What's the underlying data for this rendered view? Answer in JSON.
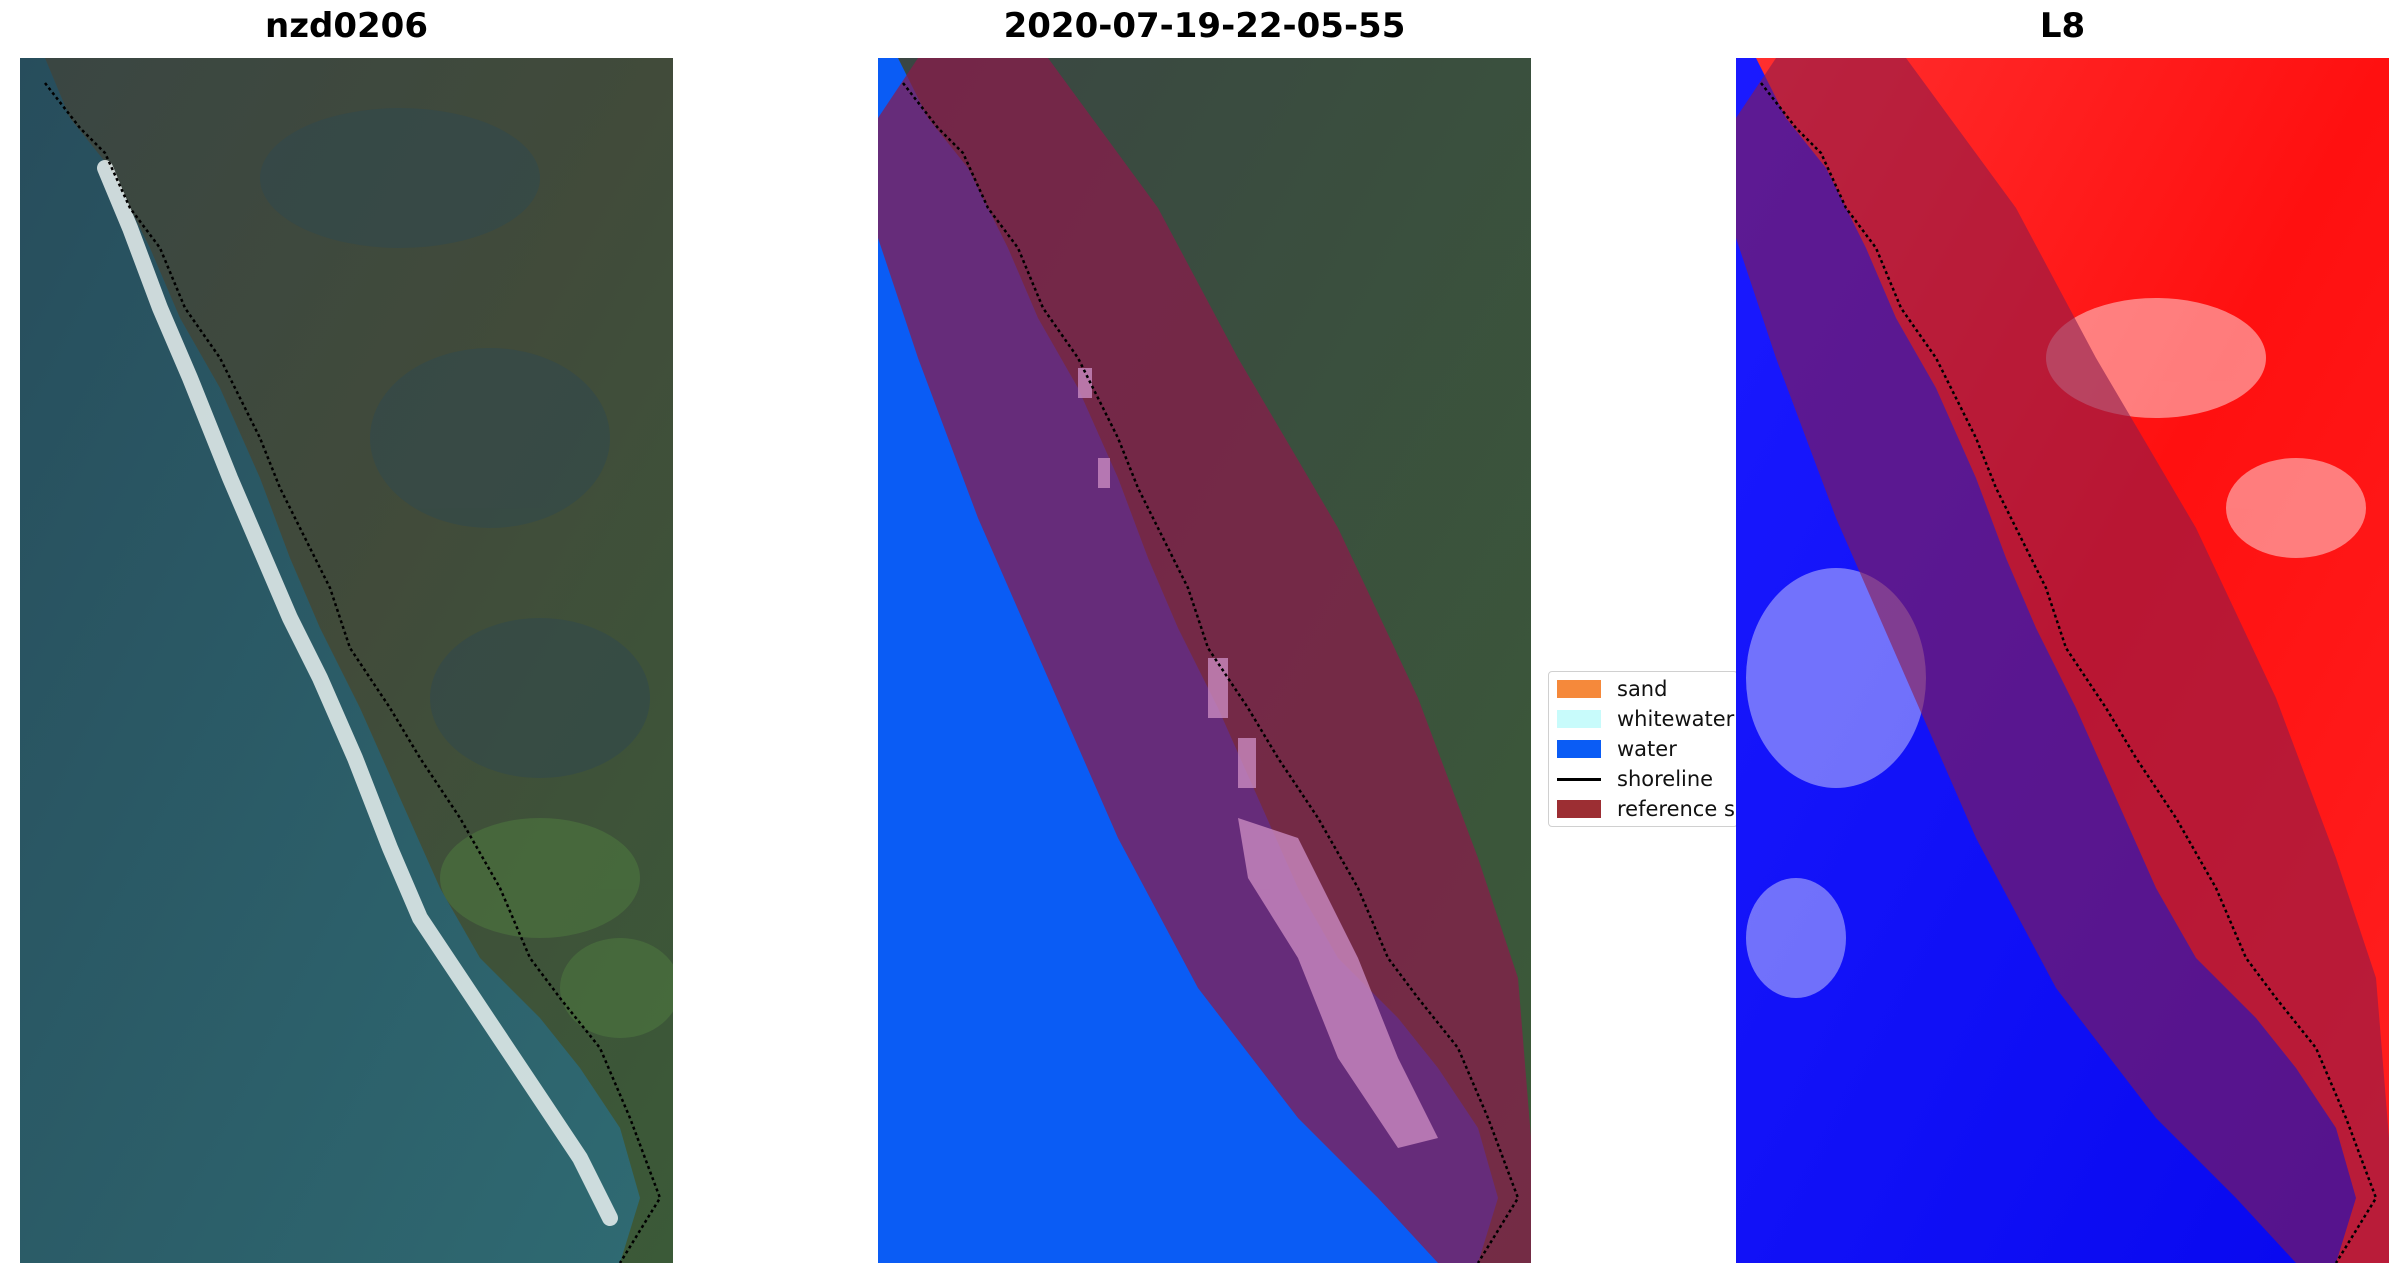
{
  "panels": [
    {
      "title": "nzd0206"
    },
    {
      "title": "2020-07-19-22-05-55"
    },
    {
      "title": "L8"
    }
  ],
  "legend": {
    "items": [
      {
        "label": "sand",
        "color": "#f5893b",
        "kind": "patch"
      },
      {
        "label": "whitewater",
        "color": "#c8fbfb",
        "kind": "patch"
      },
      {
        "label": "water",
        "color": "#0a5cf5",
        "kind": "patch"
      },
      {
        "label": "shoreline",
        "color": "#000000",
        "kind": "line"
      },
      {
        "label": "reference sh",
        "color": "#9c2e33",
        "kind": "patch"
      }
    ]
  },
  "colors": {
    "ocean": "#2f5f6b",
    "land": "#3d4a3c",
    "surf": "#e9f1f0",
    "water_class": "#0a5cf5",
    "buffer_overlay": "#8b1a4b",
    "index_positive": "#ff1a1a",
    "index_negative": "#0d0dff"
  }
}
